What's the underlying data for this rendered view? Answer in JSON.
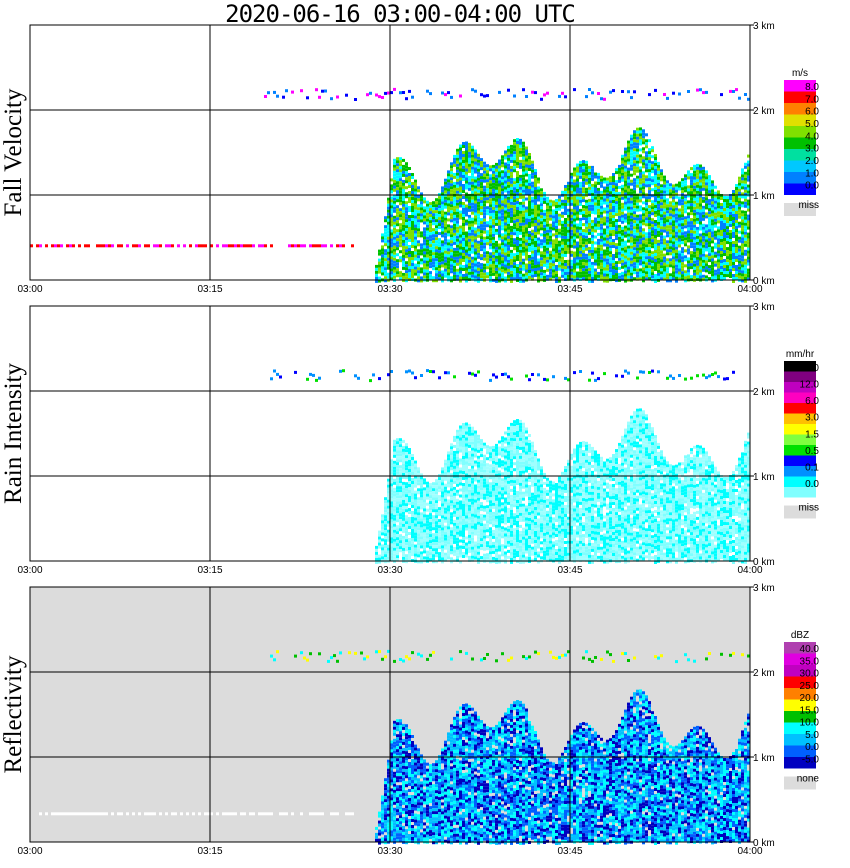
{
  "page": {
    "title": "2020-06-16   03:00-04:00 UTC"
  },
  "chart_data": [
    {
      "type": "heatmap",
      "ylabel": "Fall Velocity",
      "xticks": [
        "03:00",
        "03:15",
        "03:30",
        "03:45",
        "04:00"
      ],
      "yticks": [
        "0 km",
        "1 km",
        "2 km",
        "3 km"
      ],
      "xlim": [
        "03:00",
        "04:00"
      ],
      "ylim_km": [
        0,
        3.0
      ],
      "background": "#ffffff",
      "colorbar": {
        "unit": "m/s",
        "colors": [
          "#0000ff",
          "#0080ff",
          "#00c8ff",
          "#00e0a0",
          "#00c000",
          "#80e000",
          "#e0e000",
          "#ff8000",
          "#ff0000",
          "#ff00ff"
        ],
        "labels": [
          "8.0",
          "7.0",
          "6.0",
          "5.0",
          "4.0",
          "3.0",
          "2.0",
          "1.0",
          "0.0"
        ],
        "missing_label": "miss"
      },
      "features": [
        {
          "layer": "ice-band",
          "t_start_min": 19.5,
          "t_end_min": 60,
          "height_km": 2.2,
          "colors": [
            "#0000ff",
            "#ff00ff",
            "#0080ff"
          ]
        },
        {
          "layer": "cloud-mass",
          "t_start_min": 28.5,
          "t_end_min": 60,
          "top_km": 1.8,
          "colors": [
            "#00c000",
            "#00ffff",
            "#80e000",
            "#0080ff"
          ]
        },
        {
          "layer": "low-line",
          "t_start_min": 0,
          "t_end_min": 27,
          "height_km": 0.42,
          "colors": [
            "#ff00ff",
            "#ff0000"
          ]
        }
      ]
    },
    {
      "type": "heatmap",
      "ylabel": "Rain Intensity",
      "xticks": [
        "03:00",
        "03:15",
        "03:30",
        "03:45",
        "04:00"
      ],
      "yticks": [
        "0 km",
        "1 km",
        "2 km",
        "3 km"
      ],
      "xlim": [
        "03:00",
        "04:00"
      ],
      "ylim_km": [
        0,
        3.0
      ],
      "background": "#ffffff",
      "colorbar": {
        "unit": "mm/hr",
        "colors": [
          "#80ffff",
          "#00ffff",
          "#0090ff",
          "#0000ff",
          "#00e000",
          "#80ff40",
          "#ffff00",
          "#ffc000",
          "#ff0000",
          "#ff00c0",
          "#c000c0",
          "#800080",
          "#000000"
        ],
        "labels": [
          "48.0",
          "12.0",
          "6.0",
          "3.0",
          "1.5",
          "0.5",
          "0.1",
          "0.0"
        ],
        "missing_label": "miss"
      },
      "features": [
        {
          "layer": "ice-band",
          "t_start_min": 19.5,
          "t_end_min": 60,
          "height_km": 2.2,
          "colors": [
            "#0000ff",
            "#0090ff",
            "#00e000"
          ]
        },
        {
          "layer": "cloud-mass",
          "t_start_min": 28.5,
          "t_end_min": 60,
          "top_km": 1.8,
          "colors": [
            "#80ffff",
            "#a0ffff",
            "#00ffff"
          ]
        }
      ]
    },
    {
      "type": "heatmap",
      "ylabel": "Reflectivity",
      "xticks": [
        "03:00",
        "03:15",
        "03:30",
        "03:45",
        "04:00"
      ],
      "yticks": [
        "0 km",
        "1 km",
        "2 km",
        "3 km"
      ],
      "xlim": [
        "03:00",
        "04:00"
      ],
      "ylim_km": [
        0,
        3.0
      ],
      "background": "#dcdcdc",
      "colorbar": {
        "unit": "dBZ",
        "colors": [
          "#0000c0",
          "#0060ff",
          "#00c0ff",
          "#00ffff",
          "#00c000",
          "#ffff00",
          "#ff8000",
          "#ff0000",
          "#c000c0",
          "#e000e0",
          "#b040b0"
        ],
        "labels": [
          "40.0",
          "35.0",
          "30.0",
          "25.0",
          "20.0",
          "15.0",
          "10.0",
          "5.0",
          "0.0",
          "-5.0"
        ],
        "missing_label": "none"
      },
      "features": [
        {
          "layer": "ice-band",
          "t_start_min": 19.5,
          "t_end_min": 60,
          "height_km": 2.2,
          "colors": [
            "#00c000",
            "#ffff00",
            "#00ffff"
          ]
        },
        {
          "layer": "cloud-mass",
          "t_start_min": 28.5,
          "t_end_min": 60,
          "top_km": 1.8,
          "colors": [
            "#00c0ff",
            "#00ffff",
            "#0060ff",
            "#0000c0"
          ]
        },
        {
          "layer": "low-line",
          "t_start_min": 0,
          "t_end_min": 27,
          "height_km": 0.35,
          "colors": [
            "#ffffff"
          ]
        }
      ]
    }
  ]
}
